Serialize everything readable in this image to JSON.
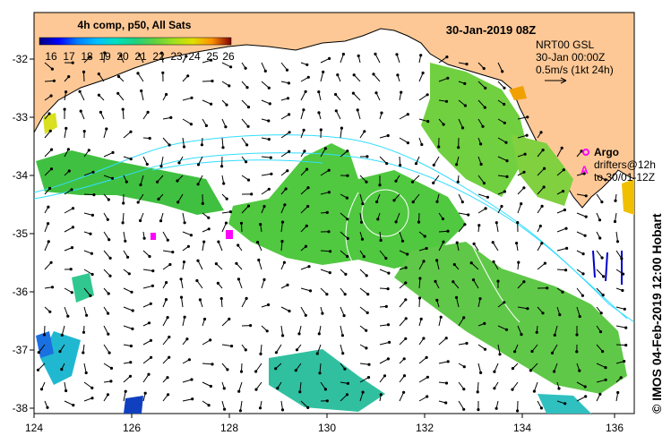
{
  "header": {
    "title": "30-Jan-2019 08Z",
    "composite_label": "4h comp, p50, All Sats"
  },
  "colorbar": {
    "tick_labels": [
      "16",
      "17",
      "18",
      "19",
      "20",
      "21",
      "22",
      "23",
      "24",
      "25",
      "26"
    ],
    "colors": [
      "#00007f",
      "#0000ff",
      "#0080ff",
      "#00c0ff",
      "#00e0c0",
      "#20d080",
      "#60d040",
      "#a0e020",
      "#e0e000",
      "#ff9000",
      "#e03000",
      "#800000"
    ]
  },
  "info_box": {
    "line1": "NRT00 GSL",
    "line2": "30-Jan 00:00Z",
    "line3": "0.5m/s (1kt 24h)"
  },
  "legend": {
    "argo_label": "Argo",
    "drifters_line1": "drifters@12h",
    "drifters_line2": "to 30/01-12Z",
    "argo_color": "#ff00ff"
  },
  "axes": {
    "x_ticks": [
      "124",
      "126",
      "128",
      "130",
      "132",
      "134",
      "136"
    ],
    "y_ticks": [
      "-32",
      "-33",
      "-34",
      "-35",
      "-36",
      "-37",
      "-38"
    ]
  },
  "credit": "© IMOS 04-Feb-2019 12:00 Hobart",
  "colors": {
    "land": "#fdc896",
    "sea": "#ffffff",
    "contour": "#33ddff"
  }
}
